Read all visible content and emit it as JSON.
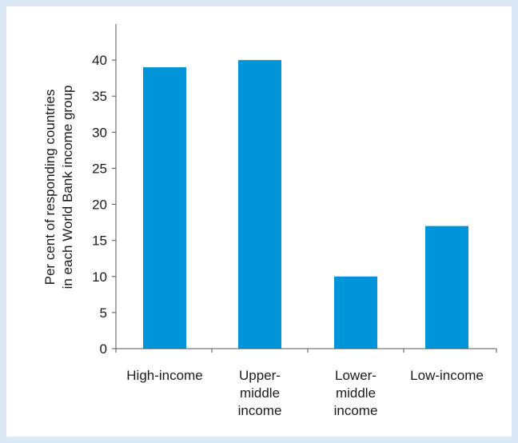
{
  "chart_data": {
    "type": "bar",
    "categories": [
      [
        "High-income"
      ],
      [
        "Upper-",
        "middle",
        "income"
      ],
      [
        "Lower-",
        "middle",
        "income"
      ],
      [
        "Low-income"
      ]
    ],
    "values": [
      39,
      40,
      10,
      17
    ],
    "ylabel_lines": [
      "Per cent of responding countries",
      "in each World Bank income group"
    ],
    "yticks": [
      0,
      5,
      10,
      15,
      20,
      25,
      30,
      35,
      40
    ],
    "ylim": [
      0,
      45
    ],
    "grid": false,
    "bar_color": "#0095d9",
    "axis_color": "#555555"
  }
}
